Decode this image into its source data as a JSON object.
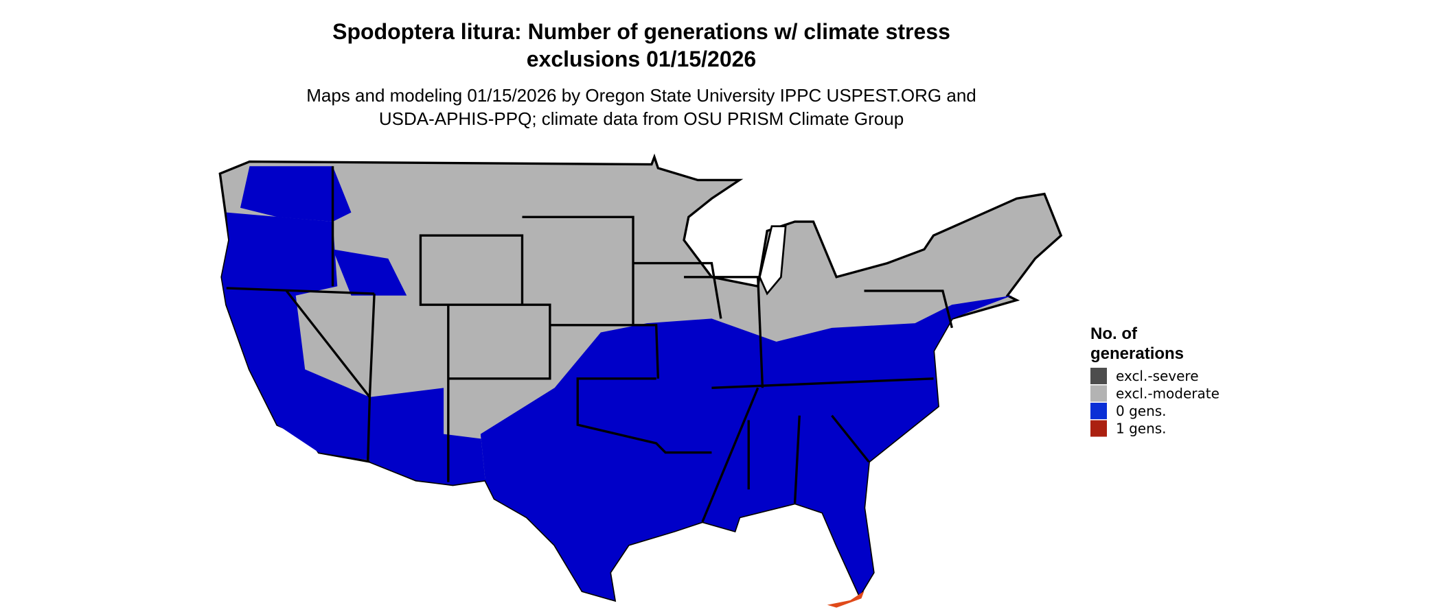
{
  "title_lines": [
    "Spodoptera litura: Number of generations w/ climate stress",
    "exclusions 01/15/2026"
  ],
  "subtitle_lines": [
    "Maps and modeling 01/15/2026 by Oregon State University IPPC USPEST.ORG and",
    "USDA-APHIS-PPQ; climate data from OSU PRISM Climate Group"
  ],
  "legend": {
    "title_lines": [
      "No. of",
      "generations"
    ],
    "items": [
      {
        "label": "excl.-severe",
        "color": "#4d4d4d"
      },
      {
        "label": "excl.-moderate",
        "color": "#b3b3b3"
      },
      {
        "label": "0 gens.",
        "color": "#0a2fd6"
      },
      {
        "label": "1 gens.",
        "color": "#ab2010"
      }
    ]
  }
}
